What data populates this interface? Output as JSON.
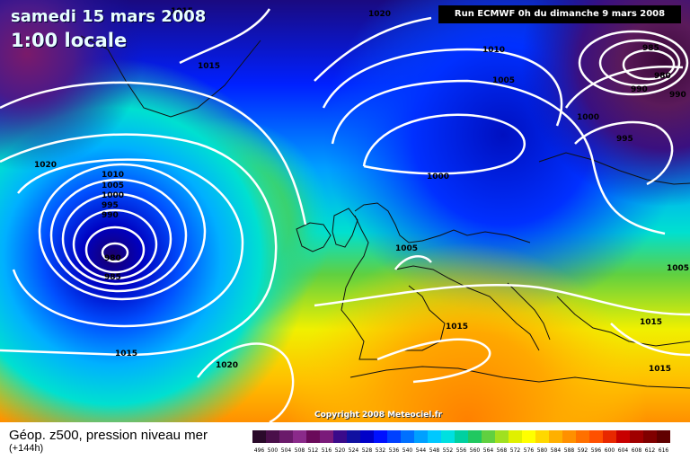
{
  "header": {
    "date": "samedi 15 mars 2008",
    "time": "1:00 locale",
    "run": "Run ECMWF 0h du dimanche 9 mars 2008"
  },
  "footer": {
    "parameter": "Géop. z500, pression niveau mer",
    "forecast_hour": "(+144h)",
    "copyright": "Copyright 2008 Meteociel.fr"
  },
  "legend": {
    "ticks": [
      "496",
      "500",
      "504",
      "508",
      "512",
      "516",
      "520",
      "524",
      "528",
      "532",
      "536",
      "540",
      "544",
      "548",
      "552",
      "556",
      "560",
      "564",
      "568",
      "572",
      "576",
      "580",
      "584",
      "588",
      "592",
      "596",
      "600",
      "604",
      "608",
      "612",
      "616"
    ],
    "colors": [
      "#2a0a2a",
      "#4a0f4a",
      "#6a1a6a",
      "#8a2a8a",
      "#6a0a5a",
      "#7a1a7a",
      "#3a0a8a",
      "#1010a0",
      "#0000c8",
      "#0010ff",
      "#0040ff",
      "#0070ff",
      "#00a0ff",
      "#00c8ff",
      "#00e0e0",
      "#00d0a0",
      "#20c860",
      "#60d040",
      "#a0e020",
      "#e0f000",
      "#ffff00",
      "#ffd800",
      "#ffb000",
      "#ff9000",
      "#ff7000",
      "#ff5000",
      "#e82800",
      "#c80000",
      "#a00000",
      "#800000",
      "#600000"
    ]
  },
  "isobars": {
    "low_west": [
      "1010",
      "1005",
      "1000",
      "995",
      "990",
      "985",
      "980"
    ],
    "labels_misc": [
      "1015",
      "1015",
      "1020",
      "1020",
      "1015",
      "1010",
      "1005",
      "1000",
      "1005",
      "1005",
      "1015",
      "1015",
      "1015",
      "1020",
      "1000",
      "995",
      "990",
      "980",
      "985",
      "990"
    ]
  }
}
